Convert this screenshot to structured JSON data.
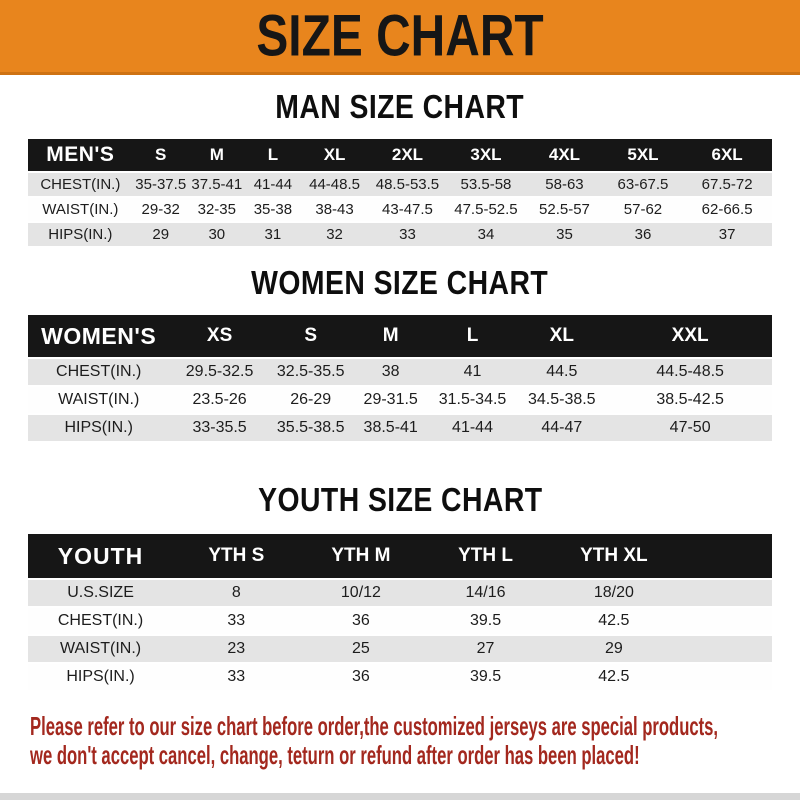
{
  "banner": {
    "title": "SIZE CHART"
  },
  "sections": {
    "men": {
      "title": "MAN SIZE CHART",
      "corner_label": "MEN'S",
      "columns": [
        "S",
        "M",
        "L",
        "XL",
        "2XL",
        "3XL",
        "4XL",
        "5XL",
        "6XL"
      ],
      "rows": [
        {
          "label": "CHEST(IN.)",
          "values": [
            "35-37.5",
            "37.5-41",
            "41-44",
            "44-48.5",
            "48.5-53.5",
            "53.5-58",
            "58-63",
            "63-67.5",
            "67.5-72"
          ]
        },
        {
          "label": "WAIST(IN.)",
          "values": [
            "29-32",
            "32-35",
            "35-38",
            "38-43",
            "43-47.5",
            "47.5-52.5",
            "52.5-57",
            "57-62",
            "62-66.5"
          ]
        },
        {
          "label": "HIPS(IN.)",
          "values": [
            "29",
            "30",
            "31",
            "32",
            "33",
            "34",
            "35",
            "36",
            "37"
          ]
        }
      ]
    },
    "women": {
      "title": "WOMEN SIZE CHART",
      "corner_label": "WOMEN'S",
      "columns": [
        "XS",
        "S",
        "M",
        "L",
        "XL",
        "XXL"
      ],
      "rows": [
        {
          "label": "CHEST(IN.)",
          "values": [
            "29.5-32.5",
            "32.5-35.5",
            "38",
            "41",
            "44.5",
            "44.5-48.5"
          ]
        },
        {
          "label": "WAIST(IN.)",
          "values": [
            "23.5-26",
            "26-29",
            "29-31.5",
            "31.5-34.5",
            "34.5-38.5",
            "38.5-42.5"
          ]
        },
        {
          "label": "HIPS(IN.)",
          "values": [
            "33-35.5",
            "35.5-38.5",
            "38.5-41",
            "41-44",
            "44-47",
            "47-50"
          ]
        }
      ]
    },
    "youth": {
      "title": "YOUTH SIZE CHART",
      "corner_label": "YOUTH",
      "columns": [
        "YTH S",
        "YTH M",
        "YTH L",
        "YTH XL"
      ],
      "rows": [
        {
          "label": "U.S.SIZE",
          "values": [
            "8",
            "10/12",
            "14/16",
            "18/20"
          ]
        },
        {
          "label": "CHEST(IN.)",
          "values": [
            "33",
            "36",
            "39.5",
            "42.5"
          ]
        },
        {
          "label": "WAIST(IN.)",
          "values": [
            "23",
            "25",
            "27",
            "29"
          ]
        },
        {
          "label": "HIPS(IN.)",
          "values": [
            "33",
            "36",
            "39.5",
            "42.5"
          ]
        }
      ]
    }
  },
  "disclaimer": {
    "line1": "Please refer to our size chart before order,the customized jerseys are special products,",
    "line2": "we don't accept cancel, change, teturn or refund after order has been placed!"
  },
  "colors": {
    "banner_orange": "#E8851D",
    "header_bar_black": "#161616",
    "row_gray": "#E4E4E4",
    "disclaimer_red": "#A3281E"
  }
}
